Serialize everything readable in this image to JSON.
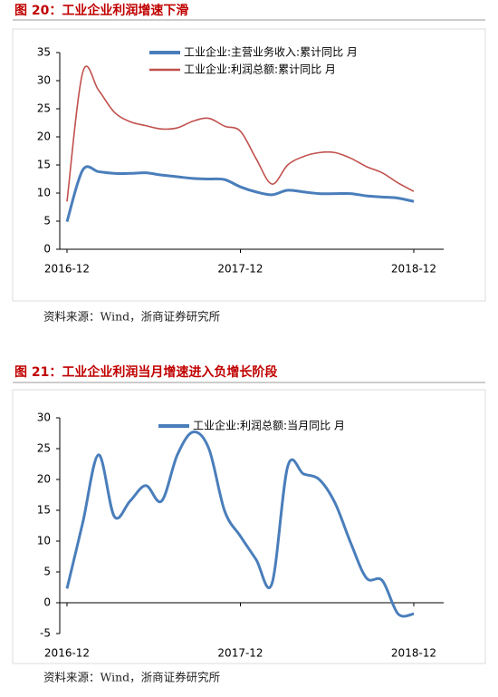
{
  "chart_data": [
    {
      "type": "line",
      "title": "图 20：工业企业利润增速下滑",
      "categories": [
        "2016-12",
        null,
        null,
        null,
        null,
        null,
        null,
        null,
        null,
        null,
        null,
        "2017-12",
        null,
        null,
        null,
        null,
        null,
        null,
        null,
        null,
        null,
        null,
        "2018-12"
      ],
      "series": [
        {
          "name": "工业企业:主营业务收入:累计同比 月",
          "color": "#4a7ebb",
          "values": [
            4.9,
            14.1,
            13.8,
            13.5,
            13.5,
            13.6,
            13.2,
            12.9,
            12.6,
            12.5,
            12.4,
            11.1,
            10.2,
            9.7,
            10.5,
            10.2,
            9.9,
            9.9,
            9.9,
            9.5,
            9.3,
            9.1,
            8.5
          ]
        },
        {
          "name": "工业企业:利润总额:累计同比 月",
          "color": "#c0504d",
          "values": [
            8.5,
            31.5,
            28.3,
            24.4,
            22.7,
            22.0,
            21.4,
            21.6,
            22.8,
            23.3,
            21.9,
            21.0,
            16.1,
            11.6,
            15.0,
            16.5,
            17.2,
            17.2,
            16.2,
            14.7,
            13.6,
            11.8,
            10.3
          ]
        }
      ],
      "ylim": [
        0,
        35
      ],
      "yticks": [
        0,
        5,
        10,
        15,
        20,
        25,
        30,
        35
      ],
      "source": "资料来源：Wind，浙商证券研究所"
    },
    {
      "type": "line",
      "title": "图 21：工业企业利润当月增速进入负增长阶段",
      "categories": [
        "2016-12",
        null,
        null,
        null,
        null,
        null,
        null,
        null,
        null,
        null,
        null,
        "2017-12",
        null,
        null,
        null,
        null,
        null,
        null,
        null,
        null,
        null,
        null,
        "2018-12"
      ],
      "series": [
        {
          "name": "工业企业:利润总额:当月同比 月",
          "color": "#4a7ebb",
          "values": [
            2.3,
            13.0,
            24.0,
            14.0,
            16.5,
            19.0,
            16.5,
            24.0,
            27.7,
            25.0,
            14.9,
            10.8,
            7.0,
            3.1,
            22.1,
            20.9,
            20.0,
            16.2,
            9.7,
            4.0,
            3.6,
            -1.8,
            -1.8
          ]
        }
      ],
      "ylim": [
        -5,
        30
      ],
      "yticks": [
        -5,
        0,
        5,
        10,
        15,
        20,
        25,
        30
      ],
      "source": "资料来源：Wind，浙商证券研究所"
    }
  ]
}
